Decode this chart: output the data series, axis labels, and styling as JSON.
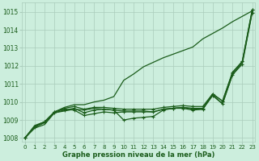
{
  "bg_color": "#cceedd",
  "grid_color": "#aaccbb",
  "line_color": "#1a5c1a",
  "xlabel": "Graphe pression niveau de la mer (hPa)",
  "ylim": [
    1007.8,
    1015.5
  ],
  "xlim": [
    0,
    23
  ],
  "yticks": [
    1008,
    1009,
    1010,
    1011,
    1012,
    1013,
    1014,
    1015
  ],
  "xticks": [
    0,
    1,
    2,
    3,
    4,
    5,
    6,
    7,
    8,
    9,
    10,
    11,
    12,
    13,
    14,
    15,
    16,
    17,
    18,
    19,
    20,
    21,
    22,
    23
  ],
  "series": [
    {
      "y": [
        1008.0,
        1008.55,
        1008.75,
        1009.4,
        1009.5,
        1009.6,
        1009.55,
        1009.65,
        1009.6,
        1009.55,
        1009.5,
        1009.5,
        1009.5,
        1009.45,
        1009.6,
        1009.65,
        1009.7,
        1009.6,
        1009.6,
        1010.4,
        1009.9,
        1011.5,
        1012.2,
        1015.0
      ],
      "marker": null,
      "lw": 0.9
    },
    {
      "y": [
        1008.0,
        1008.6,
        1008.85,
        1009.4,
        1009.55,
        1009.65,
        1009.4,
        1009.55,
        1009.6,
        1009.55,
        1009.0,
        1009.1,
        1009.15,
        1009.2,
        1009.55,
        1009.65,
        1009.65,
        1009.55,
        1009.6,
        1010.35,
        1009.9,
        1011.5,
        1012.1,
        1014.95
      ],
      "marker": "+",
      "lw": 0.9
    },
    {
      "y": [
        1008.0,
        1008.65,
        1008.9,
        1009.45,
        1009.65,
        1009.75,
        1009.6,
        1009.7,
        1009.7,
        1009.65,
        1009.6,
        1009.6,
        1009.6,
        1009.6,
        1009.7,
        1009.75,
        1009.8,
        1009.75,
        1009.75,
        1010.45,
        1010.05,
        1011.6,
        1012.25,
        1015.1
      ],
      "marker": "+",
      "lw": 0.9
    },
    {
      "y": [
        1008.0,
        1008.7,
        1008.9,
        1009.45,
        1009.7,
        1009.85,
        1009.85,
        1010.0,
        1010.1,
        1010.3,
        1011.2,
        1011.55,
        1011.95,
        1012.2,
        1012.45,
        1012.65,
        1012.85,
        1013.05,
        1013.5,
        1013.8,
        1014.1,
        1014.45,
        1014.75,
        1015.05
      ],
      "marker": null,
      "lw": 0.9
    },
    {
      "y": [
        1008.0,
        1008.65,
        1008.9,
        1009.45,
        1009.6,
        1009.55,
        1009.25,
        1009.35,
        1009.45,
        1009.4,
        1009.45,
        1009.45,
        1009.45,
        1009.45,
        1009.6,
        1009.65,
        1009.7,
        1009.65,
        1009.65,
        1010.45,
        1010.05,
        1011.65,
        1012.25,
        1015.1
      ],
      "marker": "+",
      "lw": 0.9
    }
  ]
}
